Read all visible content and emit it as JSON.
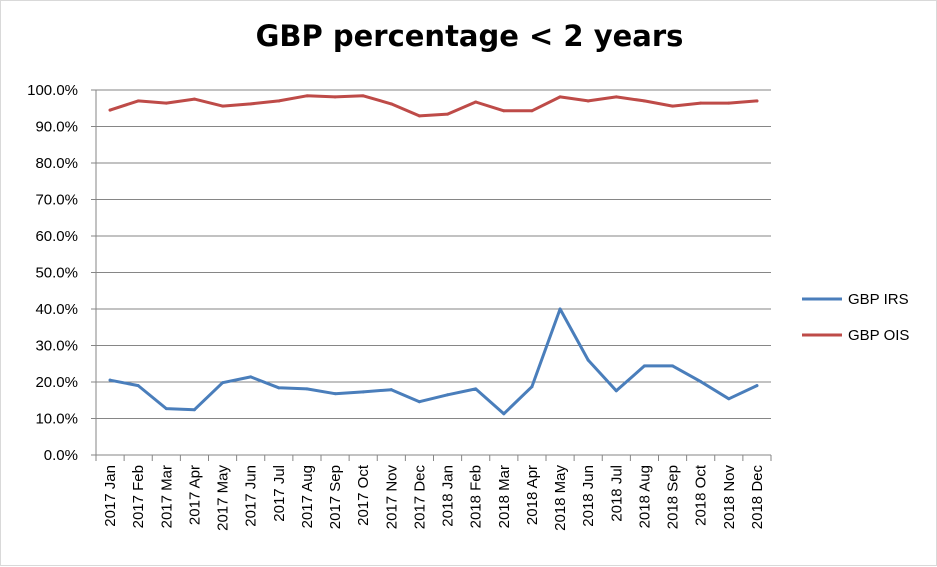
{
  "chart_data": {
    "type": "line",
    "title": "GBP percentage < 2 years",
    "xlabel": "",
    "ylabel": "",
    "ylim": [
      0,
      100
    ],
    "y_tick_labels": [
      "0.0%",
      "10.0%",
      "20.0%",
      "30.0%",
      "40.0%",
      "50.0%",
      "60.0%",
      "70.0%",
      "80.0%",
      "90.0%",
      "100.0%"
    ],
    "grid": true,
    "legend_position": "right",
    "categories": [
      "2017 Jan",
      "2017 Feb",
      "2017 Mar",
      "2017 Apr",
      "2017 May",
      "2017 Jun",
      "2017 Jul",
      "2017 Aug",
      "2017 Sep",
      "2017 Oct",
      "2017 Nov",
      "2017 Dec",
      "2018 Jan",
      "2018 Feb",
      "2018 Mar",
      "2018 Apr",
      "2018 May",
      "2018 Jun",
      "2018 Jul",
      "2018 Aug",
      "2018 Sep",
      "2018 Oct",
      "2018 Nov",
      "2018 Dec"
    ],
    "series": [
      {
        "name": "GBP IRS",
        "color": "#4a7ebb",
        "values": [
          20.5,
          19.0,
          12.7,
          12.4,
          19.8,
          21.4,
          18.4,
          18.1,
          16.8,
          17.3,
          17.9,
          14.6,
          16.5,
          18.1,
          11.3,
          18.7,
          40.0,
          26.0,
          17.6,
          24.4,
          24.4,
          20.1,
          15.4,
          19.0
        ]
      },
      {
        "name": "GBP OIS",
        "color": "#be4b48",
        "values": [
          94.5,
          97.0,
          96.4,
          97.5,
          95.6,
          96.2,
          97.0,
          98.4,
          98.1,
          98.4,
          96.2,
          92.9,
          93.4,
          96.7,
          94.3,
          94.3,
          98.1,
          97.0,
          98.1,
          97.0,
          95.6,
          96.4,
          96.4,
          97.0
        ]
      }
    ]
  }
}
